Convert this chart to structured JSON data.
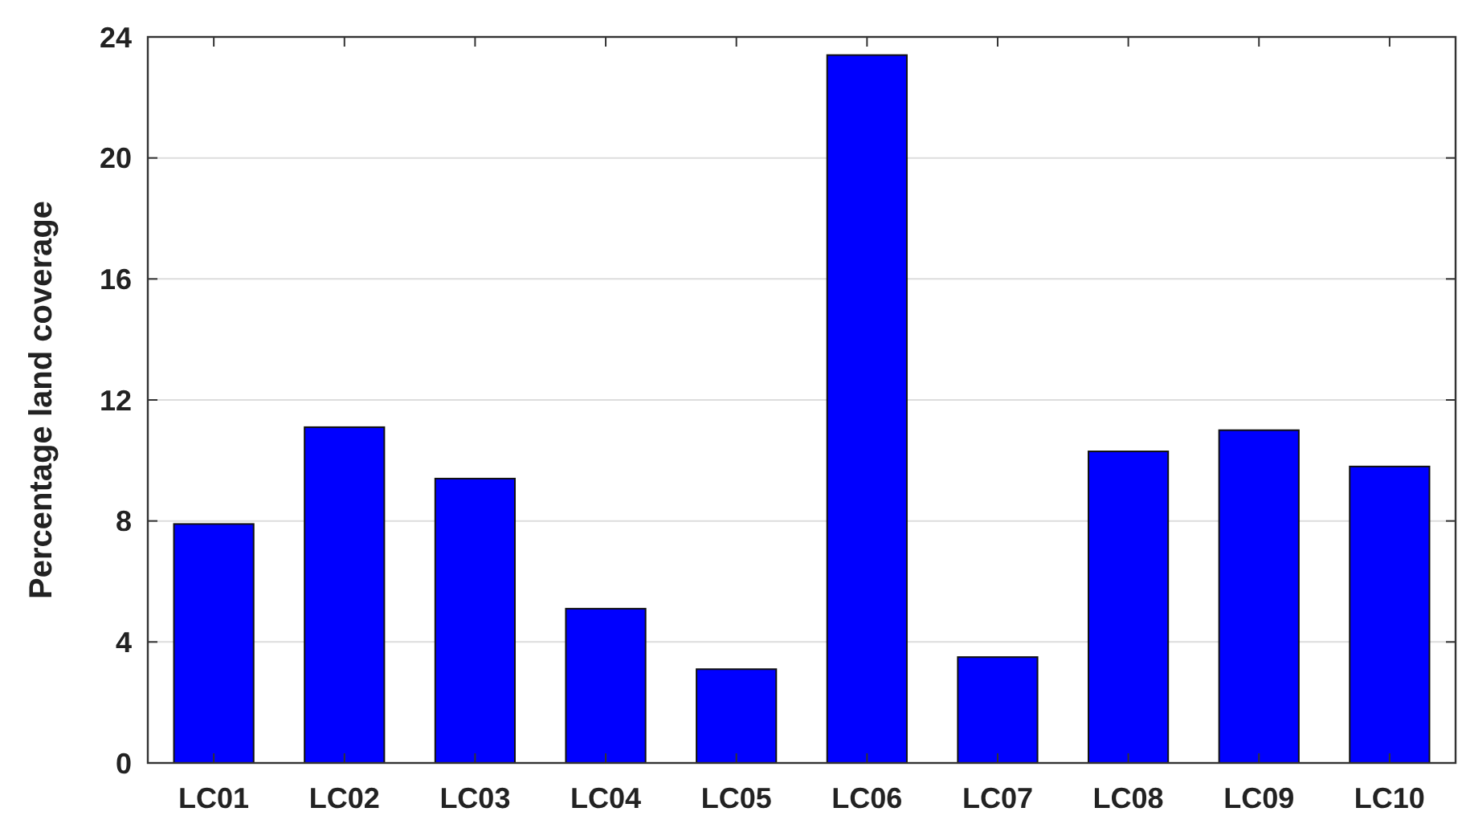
{
  "chart_data": {
    "type": "bar",
    "ylabel": "Percentage land coverage",
    "categories": [
      "LC01",
      "LC02",
      "LC03",
      "LC04",
      "LC05",
      "LC06",
      "LC07",
      "LC08",
      "LC09",
      "LC10"
    ],
    "values": [
      7.9,
      11.1,
      9.4,
      5.1,
      3.1,
      23.4,
      3.5,
      10.3,
      11.0,
      9.8
    ],
    "color": "#0000ff",
    "ylim": [
      0,
      24
    ],
    "yticks": [
      0,
      4,
      8,
      12,
      16,
      20,
      24
    ],
    "grid": "y"
  }
}
